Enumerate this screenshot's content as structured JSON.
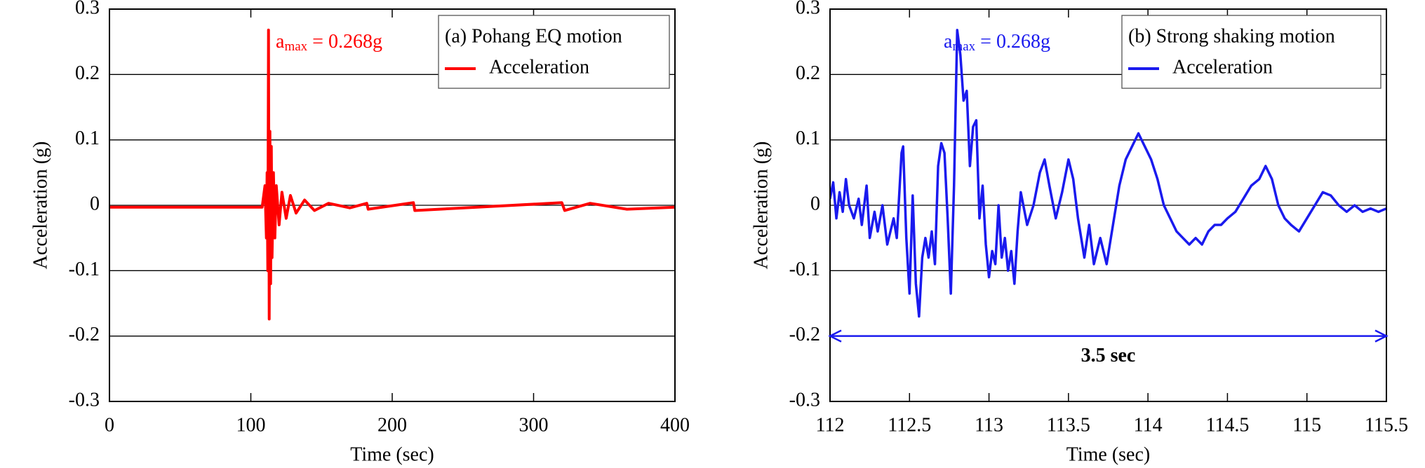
{
  "chart_data": [
    {
      "type": "line",
      "xlabel": "Time (sec)",
      "ylabel": "Acceleration (g)",
      "legend_title": "(a) Pohang EQ motion",
      "legend": "upper right",
      "annotation": {
        "text": "a",
        "sub": "max",
        "rest": "= 0.268g"
      },
      "xlim": [
        0,
        400
      ],
      "xticks": [
        0,
        100,
        200,
        300,
        400
      ],
      "ylim": [
        -0.3,
        0.3
      ],
      "yticks": [
        -0.3,
        -0.2,
        -0.1,
        0,
        0.1,
        0.2,
        0.3
      ],
      "grid": true,
      "x": [
        0,
        100,
        108,
        110,
        111,
        111.5,
        112,
        112.5,
        113,
        113.5,
        114,
        114.5,
        115,
        116,
        117,
        118,
        120,
        122,
        125,
        128,
        132,
        138,
        145,
        155,
        170,
        182,
        183,
        215,
        216,
        260,
        320,
        322,
        340,
        366,
        400
      ],
      "series": [
        {
          "name": "Acceleration",
          "color": "#ff0000",
          "values": [
            -0.003,
            -0.003,
            -0.003,
            0.03,
            -0.05,
            0.05,
            -0.1,
            0.268,
            -0.174,
            0.113,
            -0.12,
            0.09,
            -0.08,
            0.05,
            -0.05,
            0.03,
            -0.03,
            0.02,
            -0.02,
            0.015,
            -0.012,
            0.008,
            -0.008,
            0.003,
            -0.004,
            0.003,
            -0.006,
            0.004,
            -0.008,
            -0.003,
            0.004,
            -0.008,
            0.003,
            -0.006,
            -0.003
          ]
        }
      ]
    },
    {
      "type": "line",
      "xlabel": "Time (sec)",
      "ylabel": "Acceleration (g)",
      "legend_title": "(b) Strong shaking motion",
      "legend": "upper right",
      "annotation": {
        "text": "a",
        "sub": "max",
        "rest": "= 0.268g"
      },
      "span": {
        "x": [
          112,
          115.5
        ],
        "y": -0.2,
        "label": "3.5 sec"
      },
      "xlim": [
        112,
        115.5
      ],
      "xticks": [
        112,
        112.5,
        113,
        113.5,
        114,
        114.5,
        115,
        115.5
      ],
      "ylim": [
        -0.3,
        0.3
      ],
      "yticks": [
        -0.3,
        -0.2,
        -0.1,
        0,
        0.1,
        0.2,
        0.3
      ],
      "grid": true,
      "x": [
        112,
        112.02,
        112.04,
        112.06,
        112.08,
        112.1,
        112.12,
        112.15,
        112.18,
        112.2,
        112.23,
        112.25,
        112.28,
        112.3,
        112.33,
        112.36,
        112.4,
        112.42,
        112.45,
        112.46,
        112.48,
        112.5,
        112.52,
        112.54,
        112.56,
        112.58,
        112.6,
        112.62,
        112.64,
        112.66,
        112.68,
        112.7,
        112.72,
        112.74,
        112.76,
        112.78,
        112.8,
        112.82,
        112.84,
        112.86,
        112.88,
        112.9,
        112.92,
        112.94,
        112.96,
        112.98,
        113,
        113.02,
        113.04,
        113.06,
        113.08,
        113.1,
        113.12,
        113.14,
        113.16,
        113.18,
        113.2,
        113.24,
        113.28,
        113.32,
        113.35,
        113.38,
        113.42,
        113.46,
        113.5,
        113.53,
        113.56,
        113.6,
        113.63,
        113.66,
        113.7,
        113.74,
        113.78,
        113.82,
        113.86,
        113.9,
        113.94,
        113.98,
        114.02,
        114.06,
        114.1,
        114.14,
        114.18,
        114.22,
        114.26,
        114.3,
        114.34,
        114.38,
        114.42,
        114.46,
        114.5,
        114.55,
        114.6,
        114.65,
        114.7,
        114.74,
        114.78,
        114.82,
        114.86,
        114.9,
        114.95,
        115,
        115.05,
        115.1,
        115.15,
        115.2,
        115.25,
        115.3,
        115.35,
        115.4,
        115.45,
        115.5
      ],
      "series": [
        {
          "name": "Acceleration",
          "color": "#1a1aee",
          "values": [
            0.01,
            0.035,
            -0.02,
            0.02,
            -0.01,
            0.04,
            0,
            -0.02,
            0.01,
            -0.03,
            0.03,
            -0.05,
            -0.01,
            -0.04,
            0,
            -0.06,
            -0.02,
            -0.05,
            0.08,
            0.09,
            -0.05,
            -0.135,
            0.015,
            -0.12,
            -0.17,
            -0.08,
            -0.05,
            -0.08,
            -0.04,
            -0.09,
            0.06,
            0.095,
            0.08,
            -0.02,
            -0.135,
            0.03,
            0.268,
            0.23,
            0.16,
            0.175,
            0.06,
            0.12,
            0.13,
            -0.02,
            0.03,
            -0.06,
            -0.11,
            -0.07,
            -0.09,
            0,
            -0.08,
            -0.05,
            -0.1,
            -0.07,
            -0.12,
            -0.04,
            0.02,
            -0.03,
            0,
            0.05,
            0.07,
            0.03,
            -0.02,
            0.02,
            0.07,
            0.04,
            -0.02,
            -0.08,
            -0.03,
            -0.09,
            -0.05,
            -0.09,
            -0.03,
            0.03,
            0.07,
            0.09,
            0.11,
            0.09,
            0.07,
            0.04,
            0,
            -0.02,
            -0.04,
            -0.05,
            -0.06,
            -0.05,
            -0.06,
            -0.04,
            -0.03,
            -0.03,
            -0.02,
            -0.01,
            0.01,
            0.03,
            0.04,
            0.06,
            0.04,
            0,
            -0.02,
            -0.03,
            -0.04,
            -0.02,
            0,
            0.02,
            0.015,
            0,
            -0.01,
            0,
            -0.01,
            -0.005,
            -0.01,
            -0.005
          ]
        }
      ]
    }
  ]
}
